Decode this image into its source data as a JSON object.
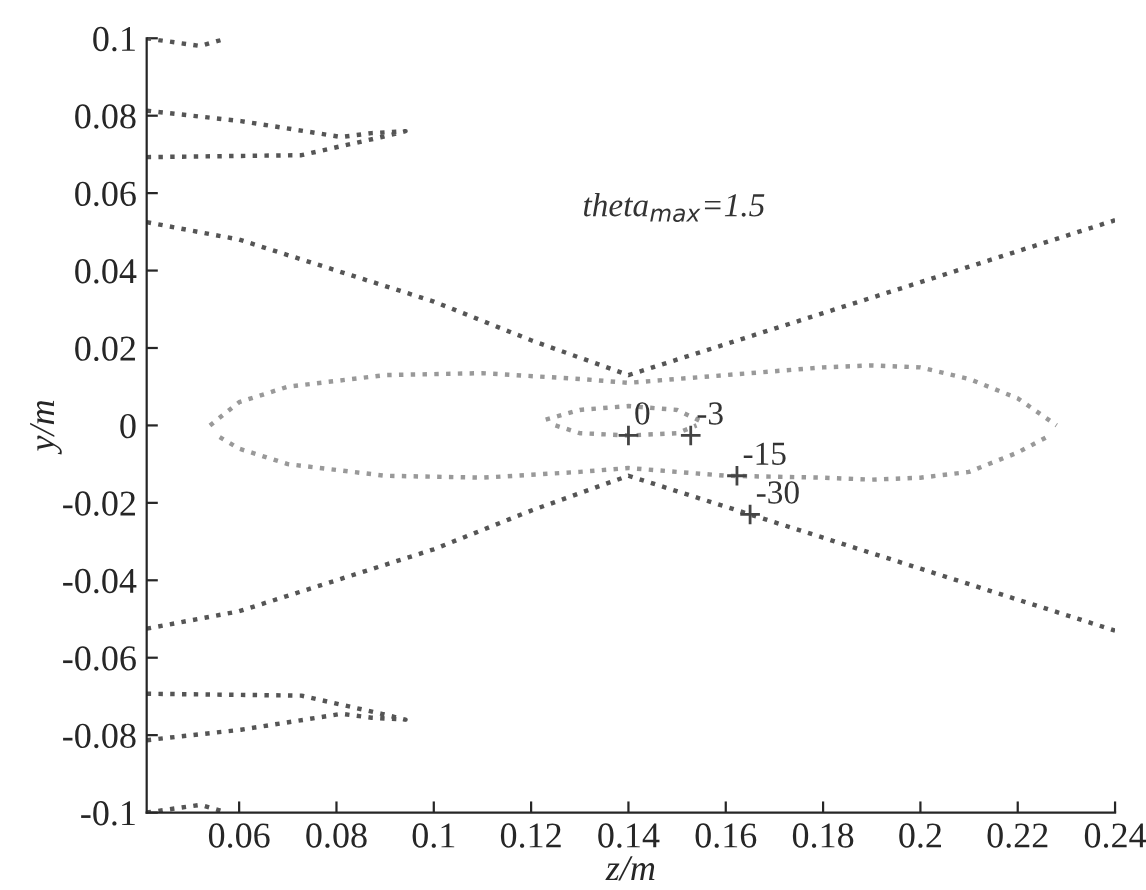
{
  "chart_data": {
    "type": "line",
    "xlabel": "z/m",
    "ylabel": "y/m",
    "xlim": [
      0.041,
      0.24
    ],
    "ylim": [
      -0.1,
      0.1
    ],
    "xticks": [
      0.06,
      0.08,
      0.1,
      0.12,
      0.14,
      0.16,
      0.18,
      0.2,
      0.22,
      0.24
    ],
    "yticks": [
      -0.1,
      -0.08,
      -0.06,
      -0.04,
      -0.02,
      0,
      0.02,
      0.04,
      0.06,
      0.08,
      0.1
    ],
    "grid": false,
    "legend": false,
    "marker": "none",
    "line_style": "dotted",
    "series": [
      {
        "color": "#555555",
        "x": [
          0.041,
          0.052,
          0.0575
        ],
        "values": [
          0.1,
          0.098,
          0.1
        ]
      },
      {
        "color": "#555555",
        "x": [
          0.041,
          0.052,
          0.0575
        ],
        "values": [
          -0.1,
          -0.098,
          -0.1
        ]
      },
      {
        "color": "#555555",
        "x": [
          0.041,
          0.0604,
          0.081,
          0.0872,
          0.0942,
          0.0893,
          0.0728,
          0.041
        ],
        "values": [
          0.0813,
          0.0786,
          0.0745,
          0.0755,
          0.076,
          0.0745,
          0.0698,
          0.0693
        ]
      },
      {
        "color": "#555555",
        "x": [
          0.041,
          0.0604,
          0.081,
          0.0872,
          0.0942,
          0.0893,
          0.0728,
          0.041
        ],
        "values": [
          -0.0813,
          -0.0786,
          -0.0745,
          -0.0755,
          -0.076,
          -0.0745,
          -0.0698,
          -0.0693
        ]
      },
      {
        "color": "#555555",
        "x": [
          0.041,
          0.06,
          0.08,
          0.1,
          0.12,
          0.14,
          0.16,
          0.18,
          0.2,
          0.22,
          0.24
        ],
        "values": [
          0.0525,
          0.048,
          0.04,
          0.032,
          0.022,
          0.013,
          0.021,
          0.029,
          0.037,
          0.045,
          0.053
        ]
      },
      {
        "color": "#555555",
        "x": [
          0.041,
          0.06,
          0.08,
          0.1,
          0.12,
          0.14,
          0.16,
          0.18,
          0.2,
          0.22,
          0.24
        ],
        "values": [
          -0.0525,
          -0.048,
          -0.04,
          -0.032,
          -0.022,
          -0.013,
          -0.021,
          -0.029,
          -0.037,
          -0.045,
          -0.053
        ]
      },
      {
        "color": "#999999",
        "x": [
          0.054,
          0.06,
          0.07,
          0.09,
          0.11,
          0.13,
          0.14,
          0.16,
          0.18,
          0.19,
          0.2,
          0.21,
          0.22,
          0.228
        ],
        "values": [
          0,
          0.006,
          0.01,
          0.013,
          0.0135,
          0.012,
          0.011,
          0.013,
          0.015,
          0.0155,
          0.015,
          0.012,
          0.007,
          0
        ]
      },
      {
        "color": "#999999",
        "x": [
          0.056,
          0.06,
          0.07,
          0.09,
          0.11,
          0.13,
          0.14,
          0.16,
          0.18,
          0.19,
          0.2,
          0.21,
          0.22,
          0.226
        ],
        "values": [
          -0.003,
          -0.006,
          -0.01,
          -0.013,
          -0.0135,
          -0.012,
          -0.011,
          -0.013,
          -0.0135,
          -0.014,
          -0.0135,
          -0.012,
          -0.007,
          -0.003
        ]
      },
      {
        "color": "#999999",
        "x": [
          0.123,
          0.13,
          0.14,
          0.15,
          0.155
        ],
        "values": [
          0.0015,
          0.004,
          0.005,
          0.004,
          0.001
        ]
      },
      {
        "color": "#999999",
        "x": [
          0.125,
          0.13,
          0.14,
          0.15,
          0.154
        ],
        "values": [
          0,
          -0.002,
          -0.0026,
          -0.002,
          0
        ]
      },
      {
        "type": "scatter",
        "marker": "cross",
        "color": "#444444",
        "x": [
          0.14,
          0.1528,
          0.1623,
          0.165
        ],
        "values": [
          -0.0026,
          -0.0026,
          -0.013,
          -0.023
        ]
      }
    ],
    "annotations": [
      {
        "text": "0",
        "x": 0.14,
        "y": -0.0026
      },
      {
        "text": "-3",
        "x": 0.1528,
        "y": -0.0026
      },
      {
        "text": "-15",
        "x": 0.1623,
        "y": -0.013
      },
      {
        "text": "-30",
        "x": 0.165,
        "y": -0.023
      },
      "theta$_{max}$=1.5"
    ]
  }
}
